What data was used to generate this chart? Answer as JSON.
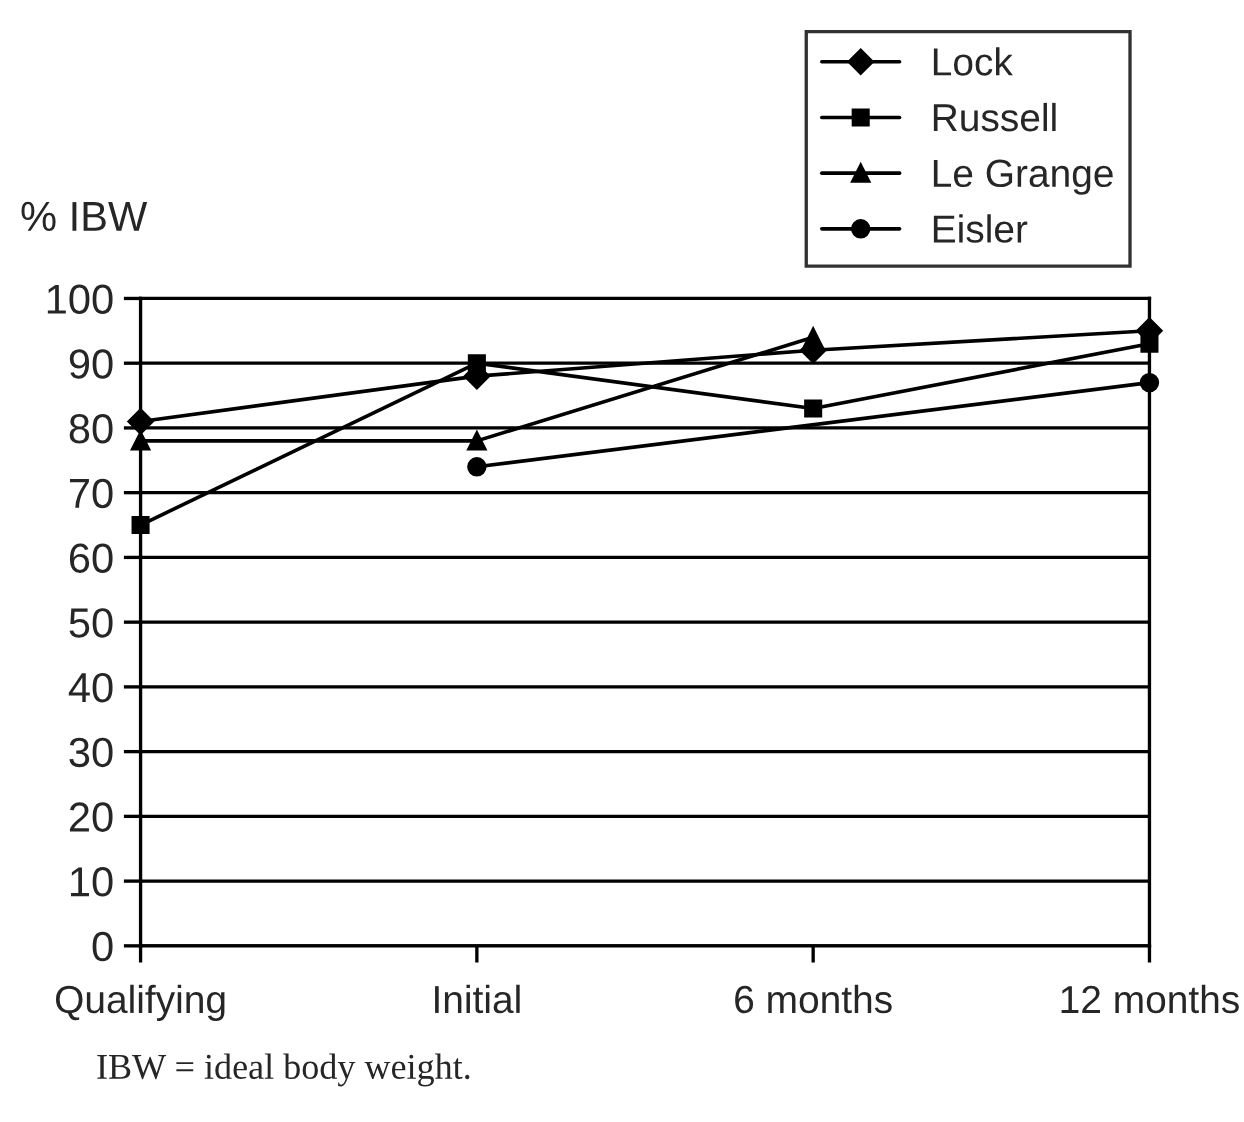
{
  "chart_data": {
    "type": "line",
    "ylabel": "% IBW",
    "categories": [
      "Qualifying",
      "Initial",
      "6 months",
      "12 months"
    ],
    "series": [
      {
        "name": "Lock",
        "color": "#000000",
        "marker": "diamond",
        "values": [
          81,
          88,
          92,
          95
        ]
      },
      {
        "name": "Russell",
        "color": "#000000",
        "marker": "square",
        "values": [
          65,
          90,
          83,
          93
        ]
      },
      {
        "name": "Le Grange",
        "color": "#000000",
        "marker": "triangle",
        "values": [
          78,
          78,
          94,
          null
        ]
      },
      {
        "name": "Eisler",
        "color": "#000000",
        "marker": "circle",
        "values": [
          null,
          74,
          null,
          87
        ]
      }
    ],
    "ylim": [
      0,
      100
    ],
    "yticks": [
      0,
      10,
      20,
      30,
      40,
      50,
      60,
      70,
      80,
      90,
      100
    ],
    "grid": "y",
    "legend": "top right",
    "line_style": "solid",
    "annotations": [
      "IBW = ideal body weight."
    ]
  }
}
